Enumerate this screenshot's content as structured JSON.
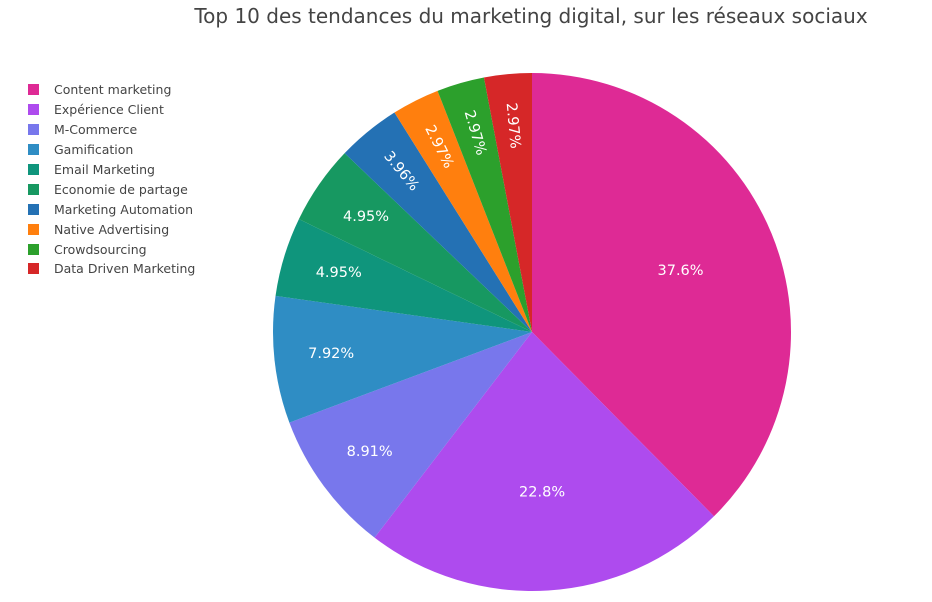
{
  "chart_data": {
    "type": "pie",
    "title": "Top 10 des tendances du marketing digital, sur les réseaux sociaux",
    "legend_position": "top-left",
    "slices": [
      {
        "label": "Content marketing",
        "value": 37.6,
        "display": "37.6%",
        "color": "#de2a95"
      },
      {
        "label": "Expérience Client",
        "value": 22.8,
        "display": "22.8%",
        "color": "#ae4bee"
      },
      {
        "label": "M-Commerce",
        "value": 8.91,
        "display": "8.91%",
        "color": "#7877ec"
      },
      {
        "label": "Gamification",
        "value": 7.92,
        "display": "7.92%",
        "color": "#2f8dc4"
      },
      {
        "label": "Email Marketing",
        "value": 4.95,
        "display": "4.95%",
        "color": "#0f957c"
      },
      {
        "label": "Economie de partage",
        "value": 4.95,
        "display": "4.95%",
        "color": "#179861"
      },
      {
        "label": "Marketing Automation",
        "value": 3.96,
        "display": "3.96%",
        "color": "#2471b4"
      },
      {
        "label": "Native Advertising",
        "value": 2.97,
        "display": "2.97%",
        "color": "#ff7f0e"
      },
      {
        "label": "Crowdsourcing",
        "value": 2.97,
        "display": "2.97%",
        "color": "#2ca02c"
      },
      {
        "label": "Data Driven Marketing",
        "value": 2.97,
        "display": "2.97%",
        "color": "#d62728"
      }
    ]
  }
}
